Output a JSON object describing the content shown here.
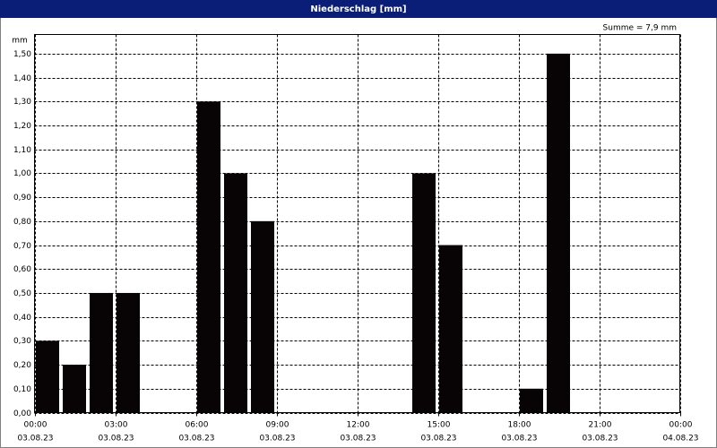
{
  "window_title": "Niederschlag [mm]",
  "chart_data": {
    "type": "bar",
    "annotation": "Summe = 7,9 mm",
    "y_label": "mm",
    "x": [
      0,
      1,
      2,
      3,
      6,
      7,
      8,
      14,
      15,
      18,
      19
    ],
    "values": [
      0.3,
      0.2,
      0.5,
      0.5,
      1.3,
      1.0,
      0.8,
      1.0,
      0.7,
      0.1,
      1.5
    ],
    "color": "#080406",
    "xlim": [
      0,
      24
    ],
    "xticks": [
      {
        "value": 0,
        "label": "00:00"
      },
      {
        "value": 3,
        "label": "03:00"
      },
      {
        "value": 6,
        "label": "06:00"
      },
      {
        "value": 9,
        "label": "09:00"
      },
      {
        "value": 12,
        "label": "12:00"
      },
      {
        "value": 15,
        "label": "15:00"
      },
      {
        "value": 18,
        "label": "18:00"
      },
      {
        "value": 21,
        "label": "21:00"
      },
      {
        "value": 24,
        "label": "00:00"
      }
    ],
    "xtick_dates": [
      "03.08.23",
      "03.08.23",
      "03.08.23",
      "03.08.23",
      "03.08.23",
      "03.08.23",
      "03.08.23",
      "03.08.23",
      "04.08.23"
    ],
    "ylim": [
      0,
      1.58
    ],
    "yticks": [
      {
        "value": 0,
        "label": "0,00"
      },
      {
        "value": 0.1,
        "label": "0,10"
      },
      {
        "value": 0.2,
        "label": "0,20"
      },
      {
        "value": 0.3,
        "label": "0,30"
      },
      {
        "value": 0.4,
        "label": "0,40"
      },
      {
        "value": 0.5,
        "label": "0,50"
      },
      {
        "value": 0.6,
        "label": "0,60"
      },
      {
        "value": 0.7,
        "label": "0,70"
      },
      {
        "value": 0.8,
        "label": "0,80"
      },
      {
        "value": 0.9,
        "label": "0,90"
      },
      {
        "value": 1.0,
        "label": "1,00"
      },
      {
        "value": 1.1,
        "label": "1,10"
      },
      {
        "value": 1.2,
        "label": "1,20"
      },
      {
        "value": 1.3,
        "label": "1,30"
      },
      {
        "value": 1.4,
        "label": "1,40"
      },
      {
        "value": 1.5,
        "label": "1,50"
      }
    ],
    "grid": true
  }
}
